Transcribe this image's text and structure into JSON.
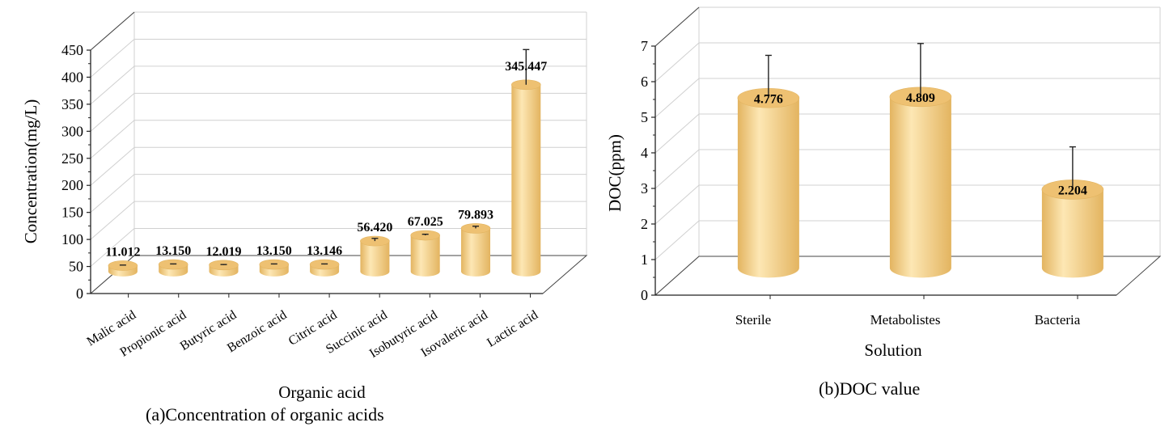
{
  "colors": {
    "bar_fill": "#f5cf82",
    "bar_light": "#fde7b4",
    "bar_dark": "#e3b460",
    "bar_top": "#eec172",
    "grid": "#d0d0d0",
    "axis": "#222222"
  },
  "chart_data": [
    {
      "type": "bar",
      "style": "3d-cylinder",
      "caption": "(a)Concentration of organic acids",
      "xlabel": "Organic acid",
      "ylabel": "Concentration(mg/L)",
      "ylim": [
        0,
        450
      ],
      "yticks": [
        0,
        50,
        100,
        150,
        200,
        250,
        300,
        350,
        400,
        450
      ],
      "categories": [
        "Malic acid",
        "Propionic acid",
        "Butyric acid",
        "Benzoic acid",
        "Citric acid",
        "Succinic acid",
        "Isobutyric acid",
        "Isovaleric acid",
        "Lactic acid"
      ],
      "values": [
        11.012,
        13.15,
        12.019,
        13.15,
        13.146,
        56.42,
        67.025,
        79.893,
        345.447
      ],
      "value_labels": [
        "11.012",
        "13.150",
        "12.019",
        "13.150",
        "13.146",
        "56.420",
        "67.025",
        "79.893",
        "345.447"
      ],
      "error": [
        1,
        1,
        1,
        1,
        1,
        5,
        2,
        4,
        65
      ],
      "grid": true
    },
    {
      "type": "bar",
      "style": "3d-cylinder",
      "caption": "(b)DOC value",
      "xlabel": "Solution",
      "ylabel": "DOC(ppm)",
      "ylim": [
        0,
        7
      ],
      "yticks": [
        0,
        1,
        2,
        3,
        4,
        5,
        6,
        7
      ],
      "categories": [
        "Sterile",
        "Metabolistes",
        "Bacteria"
      ],
      "values": [
        4.776,
        4.809,
        2.204
      ],
      "value_labels": [
        "4.776",
        "4.809",
        "2.204"
      ],
      "error": [
        1.2,
        1.5,
        1.2
      ],
      "grid": true
    }
  ]
}
